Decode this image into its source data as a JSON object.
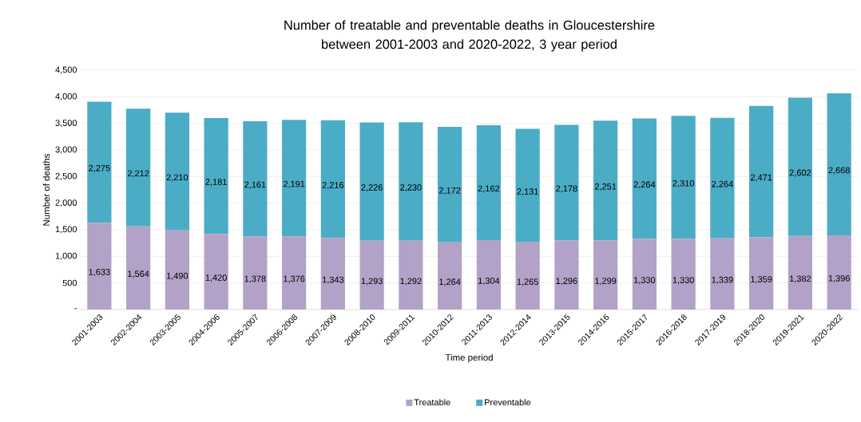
{
  "chart_data": {
    "type": "bar",
    "stacked": true,
    "title": "Number of treatable and preventable deaths in Gloucestershire between 2001-2003 and 2020-2022, 3 year period",
    "xlabel": "Time period",
    "ylabel": "Number of deaths",
    "categories": [
      "2001-2003",
      "2002-2004",
      "2003-2005",
      "2004-2006",
      "2005-2007",
      "2006-2008",
      "2007-2009",
      "2008-2010",
      "2009-2011",
      "2010-2012",
      "2011-2013",
      "2012-2014",
      "2013-2015",
      "2014-2016",
      "2015-2017",
      "2016-2018",
      "2017-2019",
      "2018-2020",
      "2019-2021",
      "2020-2022"
    ],
    "series": [
      {
        "name": "Treatable",
        "color": "#b3a2c7",
        "values": [
          1633,
          1564,
          1490,
          1420,
          1378,
          1376,
          1343,
          1293,
          1292,
          1264,
          1304,
          1265,
          1296,
          1299,
          1330,
          1330,
          1339,
          1359,
          1382,
          1396
        ],
        "value_labels": [
          "1,633",
          "1,564",
          "1,490",
          "1,420",
          "1,378",
          "1,376",
          "1,343",
          "1,293",
          "1,292",
          "1,264",
          "1,304",
          "1,265",
          "1,296",
          "1,299",
          "1,330",
          "1,330",
          "1,339",
          "1,359",
          "1,382",
          "1,396"
        ]
      },
      {
        "name": "Preventable",
        "color": "#4bacc6",
        "values": [
          2275,
          2212,
          2210,
          2181,
          2161,
          2191,
          2216,
          2226,
          2230,
          2172,
          2162,
          2131,
          2178,
          2251,
          2264,
          2310,
          2264,
          2471,
          2602,
          2668
        ],
        "value_labels": [
          "2,275",
          "2,212",
          "2,210",
          "2,181",
          "2,161",
          "2,191",
          "2,216",
          "2,226",
          "2,230",
          "2,172",
          "2,162",
          "2,131",
          "2,178",
          "2,251",
          "2,264",
          "2,310",
          "2,264",
          "2,471",
          "2,602",
          "2,668"
        ]
      }
    ],
    "ylim": [
      0,
      4500
    ],
    "yticks": [
      {
        "value": 0,
        "label": "-"
      },
      {
        "value": 500,
        "label": "500"
      },
      {
        "value": 1000,
        "label": "1,000"
      },
      {
        "value": 1500,
        "label": "1,500"
      },
      {
        "value": 2000,
        "label": "2,000"
      },
      {
        "value": 2500,
        "label": "2,500"
      },
      {
        "value": 3000,
        "label": "3,000"
      },
      {
        "value": 3500,
        "label": "3,500"
      },
      {
        "value": 4000,
        "label": "4,000"
      },
      {
        "value": 4500,
        "label": "4,500"
      }
    ],
    "grid": "y",
    "legend": "bottom"
  }
}
